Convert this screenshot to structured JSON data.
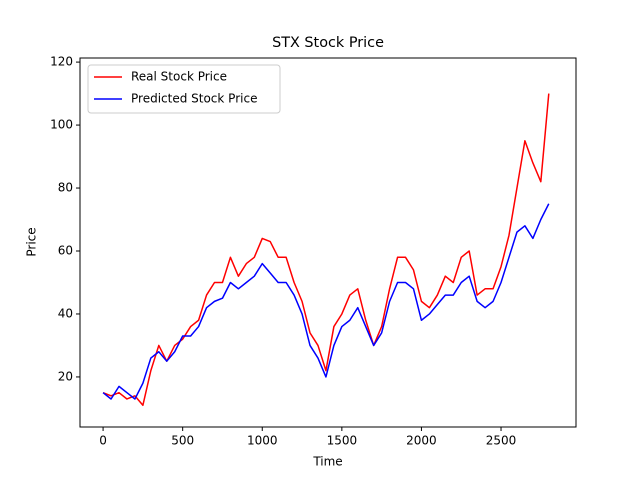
{
  "chart_data": {
    "type": "line",
    "title": "STX Stock Price",
    "x_label": "Time",
    "y_label": "Price",
    "x": [
      0,
      50,
      100,
      150,
      200,
      250,
      300,
      350,
      400,
      450,
      500,
      550,
      600,
      650,
      700,
      750,
      800,
      850,
      900,
      950,
      1000,
      1050,
      1100,
      1150,
      1200,
      1250,
      1300,
      1350,
      1400,
      1450,
      1500,
      1550,
      1600,
      1650,
      1700,
      1750,
      1800,
      1850,
      1900,
      1950,
      2000,
      2050,
      2100,
      2150,
      2200,
      2250,
      2300,
      2350,
      2400,
      2450,
      2500,
      2550,
      2600,
      2650,
      2700,
      2750,
      2800
    ],
    "series": [
      {
        "name": "Real Stock Price",
        "color": "#ff0000",
        "values": [
          15,
          14,
          15,
          13,
          14,
          11,
          22,
          30,
          25,
          30,
          32,
          36,
          38,
          46,
          50,
          50,
          58,
          52,
          56,
          58,
          64,
          63,
          58,
          58,
          50,
          44,
          34,
          30,
          22,
          36,
          40,
          46,
          48,
          38,
          30,
          36,
          48,
          58,
          58,
          54,
          44,
          42,
          46,
          52,
          50,
          58,
          60,
          46,
          48,
          48,
          55,
          65,
          80,
          95,
          88,
          82,
          110
        ]
      },
      {
        "name": "Predicted Stock Price",
        "color": "#0000ff",
        "values": [
          15,
          13,
          17,
          15,
          13,
          18,
          26,
          28,
          25,
          28,
          33,
          33,
          36,
          42,
          44,
          45,
          50,
          48,
          50,
          52,
          56,
          53,
          50,
          50,
          46,
          40,
          30,
          26,
          20,
          30,
          36,
          38,
          42,
          36,
          30,
          34,
          44,
          50,
          50,
          48,
          38,
          40,
          43,
          46,
          46,
          50,
          52,
          44,
          42,
          44,
          50,
          58,
          66,
          68,
          64,
          70,
          75
        ]
      }
    ],
    "xlim": [
      -145,
      2971
    ],
    "ylim": [
      4.1,
      121.3
    ],
    "xticks": [
      0,
      500,
      1000,
      1500,
      2000,
      2500
    ],
    "yticks": [
      20,
      40,
      60,
      80,
      100,
      120
    ],
    "legend": "upper left",
    "grid": false
  }
}
